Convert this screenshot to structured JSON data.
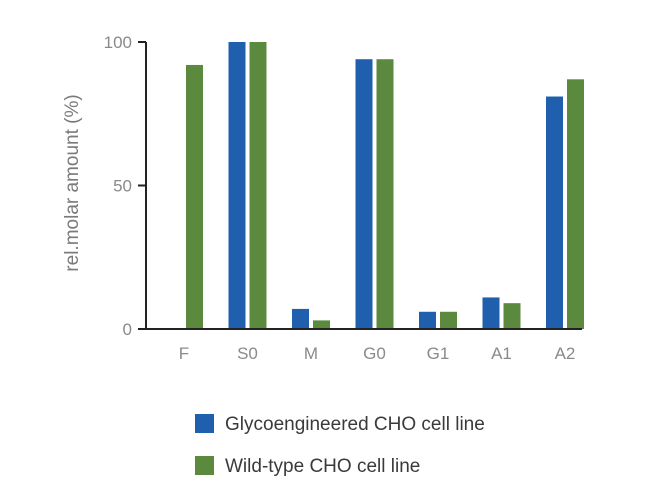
{
  "chart_data": {
    "type": "bar",
    "categories": [
      "F",
      "S0",
      "M",
      "G0",
      "G1",
      "A1",
      "A2"
    ],
    "series": [
      {
        "name": "Glycoengineered CHO cell line",
        "color": "#1f5fad",
        "values": [
          0,
          100,
          7,
          94,
          6,
          11,
          81
        ]
      },
      {
        "name": "Wild-type CHO cell line",
        "color": "#5b8a3e",
        "values": [
          92,
          100,
          3,
          94,
          6,
          9,
          87
        ]
      }
    ],
    "title": "",
    "xlabel": "",
    "ylabel": "rel.molar amount (%)",
    "ylim": [
      0,
      100
    ],
    "yticks": [
      0,
      50,
      100
    ],
    "grid": false,
    "legend_position": "bottom"
  }
}
